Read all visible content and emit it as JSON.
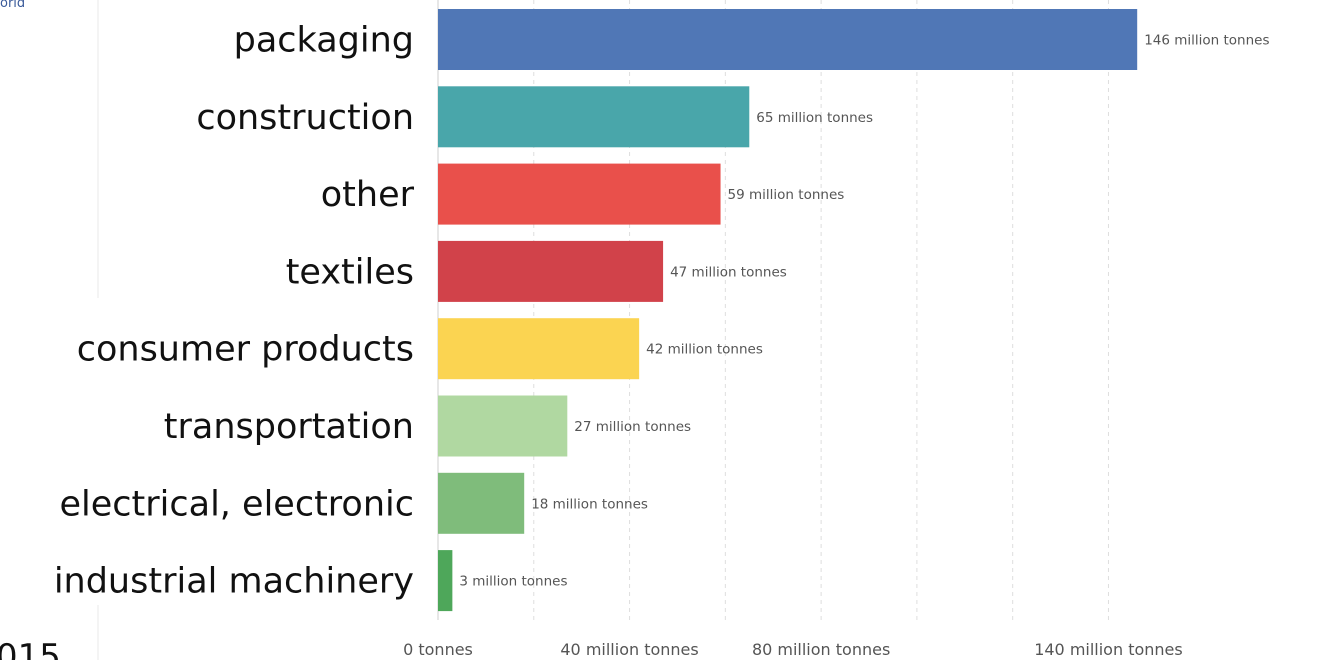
{
  "fragments": {
    "top_left": "orld",
    "bottom_left": "015"
  },
  "chart_data": {
    "type": "bar",
    "orientation": "horizontal",
    "categories": [
      "packaging",
      "construction",
      "other",
      "textiles",
      "consumer products",
      "transportation",
      "electrical, electronic",
      "industrial machinery"
    ],
    "values": [
      146,
      65,
      59,
      47,
      42,
      27,
      18,
      3
    ],
    "value_labels": [
      "146 million tonnes",
      "65 million tonnes",
      "59 million tonnes",
      "47 million tonnes",
      "42 million tonnes",
      "27 million tonnes",
      "18 million tonnes",
      "3 million tonnes"
    ],
    "colors": [
      "#5077b6",
      "#49a6aa",
      "#e9504b",
      "#d1424a",
      "#fbd451",
      "#b0d8a1",
      "#7fbc7b",
      "#4ea75a"
    ],
    "x_ticks": [
      0,
      40,
      80,
      140
    ],
    "x_tick_labels": [
      "0 tonnes",
      "40 million tonnes",
      "80 million tonnes",
      "140 million tonnes"
    ],
    "grid_lines": [
      20,
      40,
      60,
      80,
      100,
      120,
      140
    ],
    "xlim": [
      0,
      150
    ],
    "unit": "million tonnes",
    "grid": true,
    "legend": "none"
  }
}
